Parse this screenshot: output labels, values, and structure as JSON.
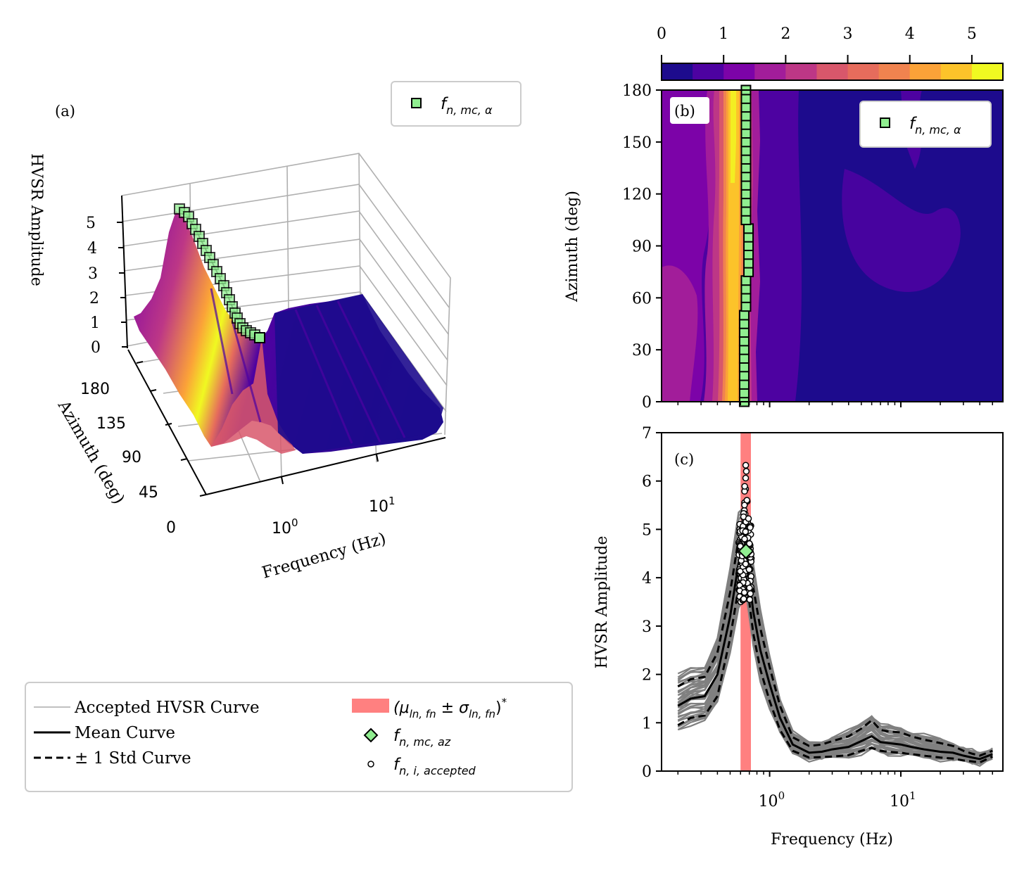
{
  "colors": {
    "colormap": [
      "#1d0b8d",
      "#4d02a1",
      "#7c03a8",
      "#a21d9a",
      "#bd3786",
      "#d8576b",
      "#e66c5c",
      "#f0834f",
      "#fba238",
      "#fcc32a",
      "#f0f921"
    ],
    "marker_fill": "#90ee90",
    "marker_edge": "#000000",
    "curve_gray": "#808080",
    "band_red": "#ff8080"
  },
  "panels": {
    "a": {
      "label": "(a)",
      "zlabel": "HVSR Amplitude",
      "ylabel": "Azimuth (deg)",
      "xlabel": "Frequency (Hz)",
      "z_ticks": [
        "0",
        "1",
        "2",
        "3",
        "4",
        "5"
      ],
      "y_ticks": [
        "0",
        "45",
        "90",
        "135",
        "180"
      ],
      "x_ticks": [
        {
          "base": "10",
          "exp": "0"
        },
        {
          "base": "10",
          "exp": "1"
        }
      ],
      "legend_symbol": "f",
      "legend_sub": "n, mc, α"
    },
    "b": {
      "label": "(b)",
      "ylabel": "Azimuth (deg)",
      "y_ticks": [
        "0",
        "30",
        "60",
        "90",
        "120",
        "150",
        "180"
      ],
      "colorbar_ticks": [
        "0",
        "1",
        "2",
        "3",
        "4",
        "5"
      ],
      "legend_symbol": "f",
      "legend_sub": "n, mc, α"
    },
    "c": {
      "label": "(c)",
      "ylabel": "HVSR Amplitude",
      "xlabel": "Frequency (Hz)",
      "y_ticks": [
        "0",
        "1",
        "2",
        "3",
        "4",
        "5",
        "6",
        "7"
      ],
      "x_ticks": [
        {
          "base": "10",
          "exp": "0"
        },
        {
          "base": "10",
          "exp": "1"
        }
      ]
    }
  },
  "legend": {
    "accepted": "Accepted HVSR Curve",
    "mean": "Mean Curve",
    "std": "± 1 Std Curve",
    "band": "(μ",
    "band_sub1": "ln, fn",
    "band_mid": " ± σ",
    "band_sub2": "ln, fn",
    "band_end": ")",
    "band_sup": "*",
    "mc_symbol": "f",
    "mc_sub": "n, mc, az",
    "acc_symbol": "f",
    "acc_sub": "n, i, accepted"
  },
  "chart_data": [
    {
      "type": "surface",
      "panel": "a",
      "x_scale": "log",
      "xlim_hz": [
        0.15,
        60
      ],
      "ylim": [
        0,
        180
      ],
      "zlim": [
        0,
        5.5
      ],
      "peak_frequency_hz": 0.67,
      "peak_amplitude": 5.3
    },
    {
      "type": "heatmap",
      "panel": "b",
      "x_scale": "log",
      "xlim_hz": [
        0.15,
        60
      ],
      "ylim": [
        0,
        180
      ],
      "colorbar_range": [
        0,
        5.5
      ],
      "fn_mc_alpha": {
        "azimuth": [
          0,
          5,
          10,
          15,
          20,
          25,
          30,
          35,
          40,
          45,
          50,
          55,
          60,
          65,
          70,
          75,
          80,
          85,
          90,
          95,
          100,
          105,
          110,
          115,
          120,
          125,
          130,
          135,
          140,
          145,
          150,
          155,
          160,
          165,
          170,
          175,
          180
        ],
        "frequency_hz": [
          0.64,
          0.64,
          0.64,
          0.64,
          0.64,
          0.64,
          0.64,
          0.64,
          0.64,
          0.64,
          0.64,
          0.66,
          0.66,
          0.66,
          0.66,
          0.69,
          0.69,
          0.69,
          0.69,
          0.69,
          0.69,
          0.66,
          0.66,
          0.66,
          0.66,
          0.66,
          0.66,
          0.66,
          0.66,
          0.66,
          0.66,
          0.66,
          0.66,
          0.66,
          0.66,
          0.66,
          0.66
        ]
      }
    },
    {
      "type": "line",
      "panel": "c",
      "x_scale": "log",
      "xlim_hz": [
        0.15,
        60
      ],
      "ylim": [
        0,
        7
      ],
      "x": [
        0.2,
        0.25,
        0.32,
        0.4,
        0.5,
        0.58,
        0.66,
        0.75,
        0.85,
        1.0,
        1.2,
        1.5,
        2.0,
        2.5,
        3.0,
        4.0,
        5.0,
        6.0,
        7.0,
        8.0,
        10.0,
        12.0,
        15.0,
        20.0,
        25.0,
        30.0,
        35.0,
        40.0,
        50.0
      ],
      "series": [
        {
          "name": "Mean Curve",
          "values": [
            1.35,
            1.5,
            1.55,
            2.0,
            3.2,
            4.3,
            4.5,
            3.3,
            2.5,
            1.8,
            1.1,
            0.55,
            0.38,
            0.4,
            0.45,
            0.5,
            0.62,
            0.72,
            0.6,
            0.58,
            0.55,
            0.5,
            0.45,
            0.4,
            0.38,
            0.32,
            0.28,
            0.25,
            0.35
          ]
        },
        {
          "name": "± 1 Std Curve",
          "values": [
            1.75,
            1.9,
            1.95,
            2.45,
            3.7,
            4.8,
            4.95,
            3.8,
            2.95,
            2.15,
            1.35,
            0.7,
            0.52,
            0.55,
            0.62,
            0.72,
            0.88,
            1.05,
            0.85,
            0.82,
            0.8,
            0.72,
            0.65,
            0.58,
            0.52,
            0.42,
            0.36,
            0.32,
            0.42
          ]
        },
        {
          "name": "± 1 Std Curve",
          "values": [
            0.95,
            1.1,
            1.15,
            1.55,
            2.75,
            3.8,
            4.05,
            2.85,
            2.1,
            1.45,
            0.85,
            0.42,
            0.28,
            0.29,
            0.3,
            0.33,
            0.42,
            0.48,
            0.42,
            0.4,
            0.38,
            0.35,
            0.32,
            0.28,
            0.26,
            0.22,
            0.2,
            0.18,
            0.3
          ]
        }
      ],
      "fn_mc_az": {
        "frequency_hz": 0.66,
        "amplitude": 4.55
      },
      "band_hz": [
        0.6,
        0.72
      ],
      "fn_i_accepted": {
        "frequency_range_hz": [
          0.58,
          0.73
        ],
        "amplitude_range": [
          3.5,
          6.45
        ]
      }
    }
  ]
}
